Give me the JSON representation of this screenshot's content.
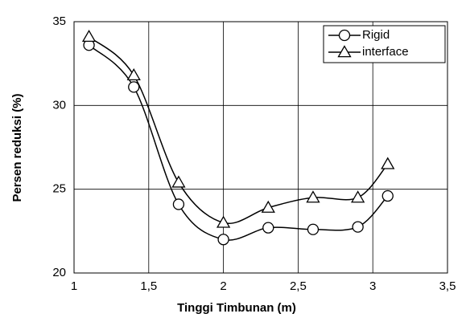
{
  "chart_data": {
    "type": "line",
    "x_label": "Tinggi Timbunan (m)",
    "y_label": "Persen reduksi (%)",
    "x": [
      1.1,
      1.4,
      1.7,
      2,
      2.3,
      2.6,
      2.9,
      3.1
    ],
    "series": [
      {
        "name": "Rigid",
        "marker": "circle",
        "color": "#000000",
        "values": [
          33.6,
          31.1,
          24.1,
          22.0,
          22.7,
          22.6,
          22.75,
          24.6
        ]
      },
      {
        "name": "interface",
        "marker": "triangle",
        "color": "#000000",
        "values": [
          34.1,
          31.8,
          25.4,
          23.0,
          23.9,
          24.5,
          24.5,
          26.5
        ]
      }
    ],
    "xlim": [
      1,
      3.5
    ],
    "xticks": [
      1,
      {
        "value": 1.5,
        "label": "1,5"
      },
      2,
      {
        "value": 2.5,
        "label": "2,5"
      },
      3,
      {
        "value": 3.5,
        "label": "3,5"
      }
    ],
    "ylim": [
      20,
      35
    ],
    "yticks": [
      20,
      25,
      30,
      35
    ],
    "grid": true,
    "legend": "upper right"
  }
}
